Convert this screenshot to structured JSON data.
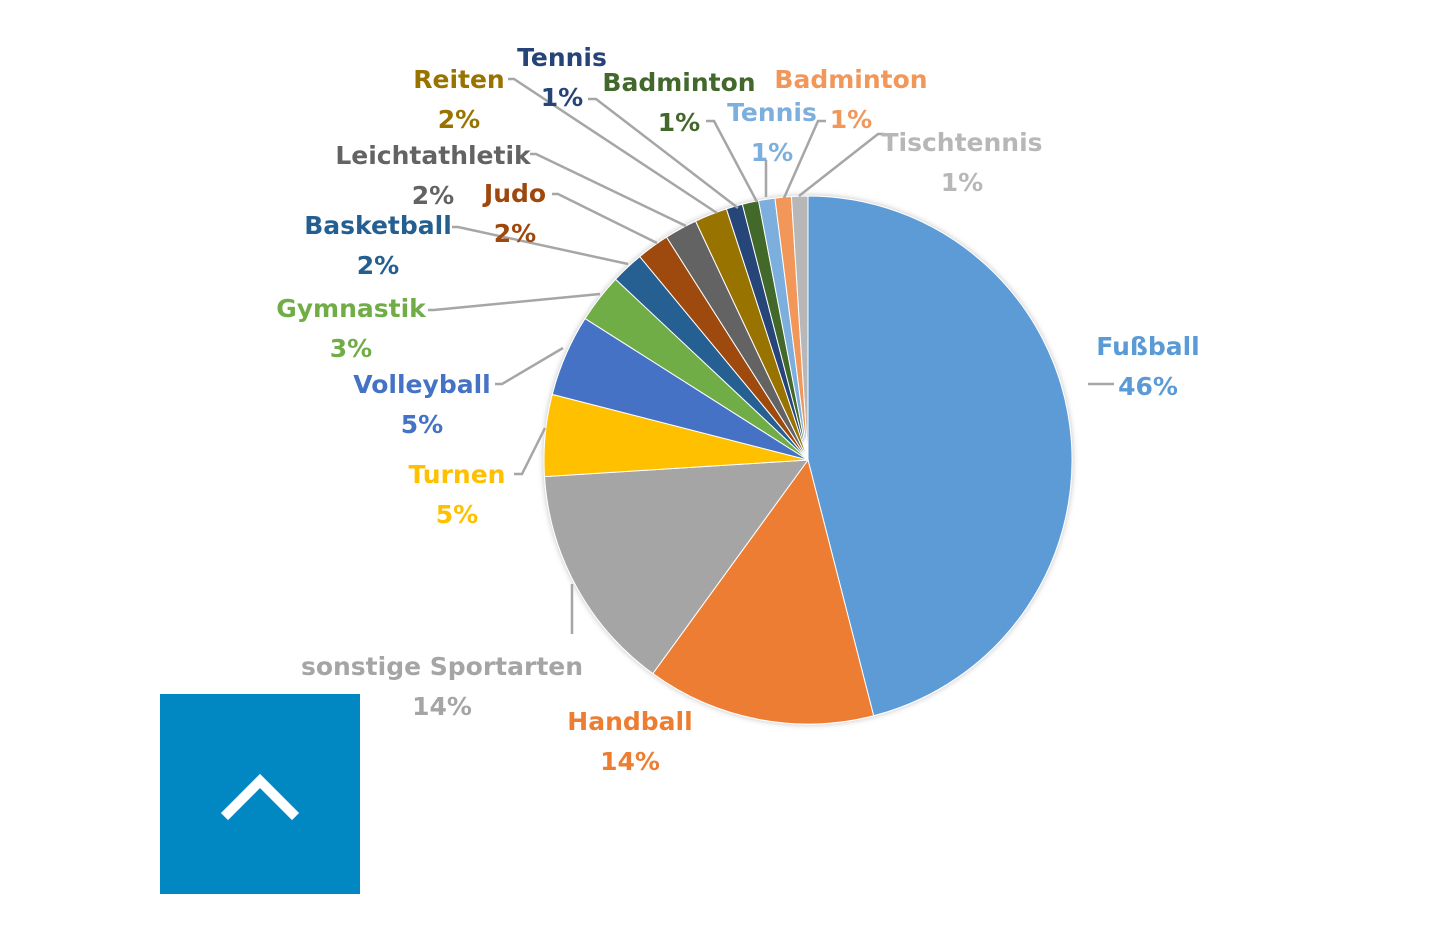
{
  "chart_data": {
    "type": "pie",
    "slices": [
      {
        "label": "Fußball",
        "value": 46,
        "pct_label": "46%",
        "color": "#5b9bd5"
      },
      {
        "label": "Handball",
        "value": 14,
        "pct_label": "14%",
        "color": "#ed7d31"
      },
      {
        "label": "sonstige Sportarten",
        "value": 14,
        "pct_label": "14%",
        "color": "#a5a5a5"
      },
      {
        "label": "Turnen",
        "value": 5,
        "pct_label": "5%",
        "color": "#ffc000"
      },
      {
        "label": "Volleyball",
        "value": 5,
        "pct_label": "5%",
        "color": "#4472c4"
      },
      {
        "label": "Gymnastik",
        "value": 3,
        "pct_label": "3%",
        "color": "#70ad47"
      },
      {
        "label": "Basketball",
        "value": 2,
        "pct_label": "2%",
        "color": "#255e91"
      },
      {
        "label": "Judo",
        "value": 2,
        "pct_label": "2%",
        "color": "#9e480e"
      },
      {
        "label": "Leichtathletik",
        "value": 2,
        "pct_label": "2%",
        "color": "#636363"
      },
      {
        "label": "Reiten",
        "value": 2,
        "pct_label": "2%",
        "color": "#997300"
      },
      {
        "label": "Tennis",
        "value": 1,
        "pct_label": "1%",
        "color": "#264478"
      },
      {
        "label": "Badminton",
        "value": 1,
        "pct_label": "1%",
        "color": "#43682b"
      },
      {
        "label": "Tennis",
        "value": 1,
        "pct_label": "1%",
        "color": "#7cafdd"
      },
      {
        "label": "Badminton",
        "value": 1,
        "pct_label": "1%",
        "color": "#f1975a"
      },
      {
        "label": "Tischtennis",
        "value": 1,
        "pct_label": "1%",
        "color": "#b7b7b7"
      }
    ],
    "start_angle": "12 o'clock",
    "direction": "clockwise",
    "data_labels": "outside with leader lines"
  },
  "back_to_top": {
    "icon": "chevron-up-icon",
    "background": "#0188c3",
    "icon_color": "#ffffff"
  }
}
